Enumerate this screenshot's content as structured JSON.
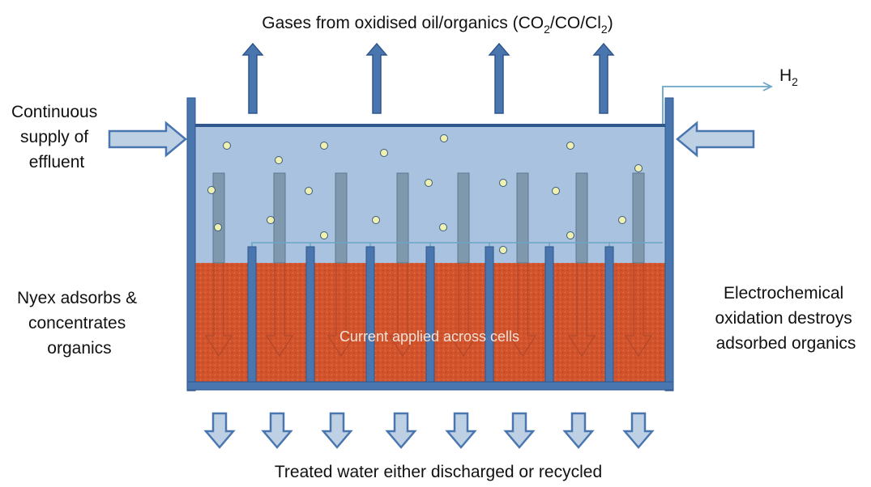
{
  "title": {
    "prefix": "Gases from oxidised oil/organics (CO",
    "sub1": "2",
    "sep1": "/CO/Cl",
    "sub2": "2",
    "suffix": ")"
  },
  "hydrogen": {
    "symbol": "H",
    "sub": "2"
  },
  "left_label": [
    "Continuous",
    "supply of",
    "effluent"
  ],
  "left_mid_label": [
    "Nyex adsorbs &",
    "concentrates",
    "organics"
  ],
  "right_label": [
    "Electrochemical",
    "oxidation destroys",
    "adsorbed organics"
  ],
  "current_label": "Current applied across cells",
  "bottom_label": "Treated water either discharged or recycled",
  "colors": {
    "tank_wall": "#4a76b0",
    "water": "#a9c2e0",
    "nyex_bed": "#d2532c",
    "arrow_fill": "#bdd0e4",
    "wire": "#6aa6c6",
    "bubble": "#f0f0b0"
  }
}
